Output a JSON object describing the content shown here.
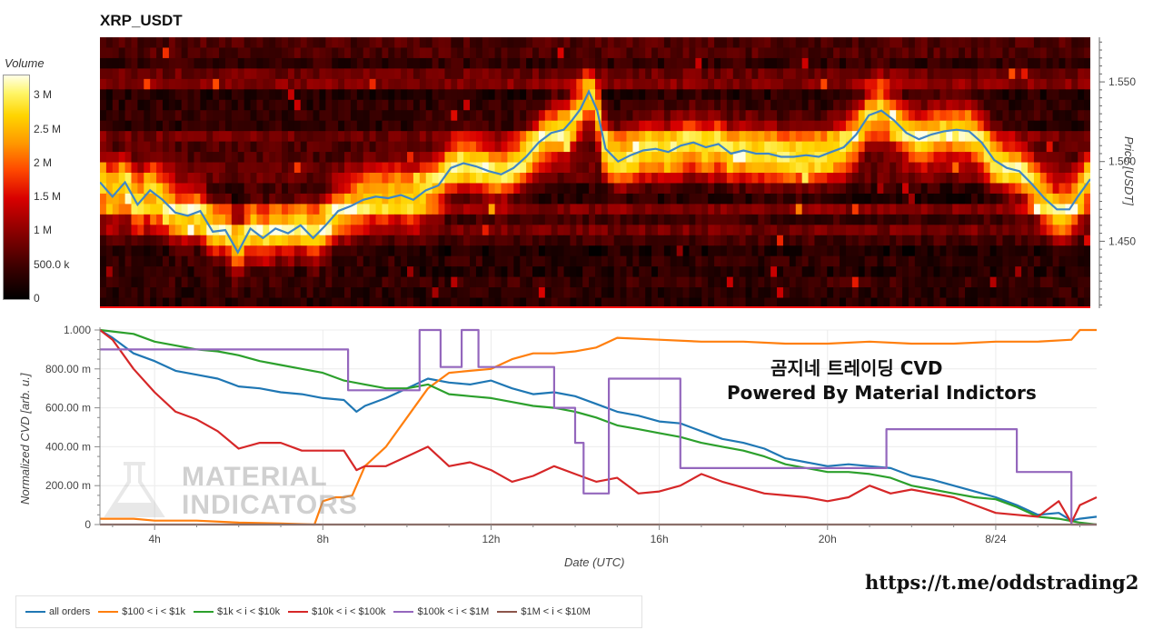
{
  "chart_data": [
    {
      "type": "heatmap",
      "title": "XRP_USDT",
      "colorbar": {
        "label": "Volume",
        "ticks": [
          "0",
          "500.0 k",
          "1 M",
          "1.5 M",
          "2 M",
          "2.5 M",
          "3 M"
        ],
        "tick_values": [
          0,
          500000,
          1000000,
          1500000,
          2000000,
          2500000,
          3000000
        ],
        "range": [
          0,
          3300000
        ]
      },
      "ylabel": "Price [USDT]",
      "ylim": [
        1.408,
        1.578
      ],
      "y_ticks": [
        "1.450",
        "1.500",
        "1.550"
      ],
      "y_tick_values": [
        1.45,
        1.5,
        1.55
      ],
      "x_range_hours": [
        2.7,
        26.4
      ],
      "price_series": {
        "x": [
          2.7,
          3.0,
          3.3,
          3.6,
          3.9,
          4.2,
          4.5,
          4.8,
          5.1,
          5.4,
          5.7,
          6.0,
          6.3,
          6.6,
          6.9,
          7.2,
          7.5,
          7.8,
          8.1,
          8.4,
          8.7,
          9.0,
          9.3,
          9.6,
          9.9,
          10.2,
          10.5,
          10.8,
          11.1,
          11.4,
          11.7,
          12.0,
          12.3,
          12.6,
          12.9,
          13.2,
          13.5,
          13.8,
          14.0,
          14.2,
          14.4,
          14.6,
          14.8,
          15.1,
          15.4,
          15.7,
          16.0,
          16.3,
          16.6,
          16.9,
          17.2,
          17.5,
          17.8,
          18.1,
          18.4,
          18.7,
          19.0,
          19.3,
          19.6,
          19.9,
          20.2,
          20.5,
          20.8,
          21.1,
          21.4,
          21.7,
          22.0,
          22.3,
          22.6,
          22.9,
          23.2,
          23.5,
          23.8,
          24.1,
          24.4,
          24.7,
          25.0,
          25.3,
          25.6,
          25.9,
          26.1,
          26.4
        ],
        "y": [
          1.487,
          1.478,
          1.487,
          1.473,
          1.482,
          1.476,
          1.468,
          1.466,
          1.469,
          1.456,
          1.457,
          1.443,
          1.458,
          1.452,
          1.458,
          1.455,
          1.46,
          1.452,
          1.46,
          1.469,
          1.472,
          1.476,
          1.478,
          1.477,
          1.479,
          1.476,
          1.482,
          1.485,
          1.496,
          1.499,
          1.497,
          1.494,
          1.492,
          1.496,
          1.503,
          1.512,
          1.518,
          1.52,
          1.526,
          1.533,
          1.544,
          1.532,
          1.508,
          1.5,
          1.504,
          1.507,
          1.508,
          1.506,
          1.51,
          1.512,
          1.509,
          1.511,
          1.505,
          1.507,
          1.505,
          1.505,
          1.503,
          1.503,
          1.504,
          1.503,
          1.506,
          1.509,
          1.517,
          1.529,
          1.532,
          1.526,
          1.518,
          1.514,
          1.517,
          1.519,
          1.52,
          1.519,
          1.512,
          1.501,
          1.496,
          1.494,
          1.486,
          1.477,
          1.47,
          1.47,
          1.478,
          1.489
        ]
      }
    },
    {
      "type": "line",
      "xlabel": "Date (UTC)",
      "ylabel": "Normalized CVD [arb. u.]",
      "ylim": [
        0,
        1.0
      ],
      "y_ticks": [
        "0",
        "200.00 m",
        "400.00 m",
        "600.00 m",
        "800.00 m",
        "1.000"
      ],
      "y_tick_values": [
        0,
        0.2,
        0.4,
        0.6,
        0.8,
        1.0
      ],
      "x_range_hours": [
        2.7,
        26.4
      ],
      "x_ticks": [
        "4h",
        "8h",
        "12h",
        "16h",
        "20h",
        "8/24"
      ],
      "x_tick_values": [
        4,
        8,
        12,
        16,
        20,
        24
      ],
      "series": [
        {
          "name": "all orders",
          "color": "#1f77b4",
          "x": [
            2.7,
            3.0,
            3.5,
            4.0,
            4.5,
            5.0,
            5.5,
            6.0,
            6.5,
            7.0,
            7.5,
            8.0,
            8.5,
            8.8,
            9.0,
            9.5,
            10.0,
            10.5,
            11.0,
            11.5,
            12.0,
            12.5,
            13.0,
            13.5,
            14.0,
            14.5,
            15.0,
            15.5,
            16.0,
            16.5,
            17.0,
            17.5,
            18.0,
            18.5,
            19.0,
            19.5,
            20.0,
            20.5,
            21.0,
            21.5,
            22.0,
            22.5,
            23.0,
            23.5,
            24.0,
            24.5,
            25.0,
            25.5,
            25.8,
            26.0,
            26.4
          ],
          "y": [
            1.0,
            0.96,
            0.88,
            0.84,
            0.79,
            0.77,
            0.75,
            0.71,
            0.7,
            0.68,
            0.67,
            0.65,
            0.64,
            0.58,
            0.61,
            0.65,
            0.7,
            0.75,
            0.73,
            0.72,
            0.74,
            0.7,
            0.67,
            0.68,
            0.66,
            0.62,
            0.58,
            0.56,
            0.53,
            0.52,
            0.48,
            0.44,
            0.42,
            0.39,
            0.34,
            0.32,
            0.3,
            0.31,
            0.3,
            0.29,
            0.25,
            0.23,
            0.2,
            0.17,
            0.14,
            0.1,
            0.05,
            0.06,
            0.02,
            0.03,
            0.04
          ]
        },
        {
          "name": "$100 < i < $1k",
          "color": "#ff7f0e",
          "x": [
            2.7,
            3.5,
            4.0,
            5.0,
            6.0,
            7.0,
            7.8,
            8.0,
            8.3,
            8.5,
            8.7,
            9.0,
            9.5,
            10.0,
            10.5,
            11.0,
            11.5,
            12.0,
            12.5,
            13.0,
            13.5,
            14.0,
            14.5,
            15.0,
            16.0,
            17.0,
            18.0,
            19.0,
            20.0,
            21.0,
            22.0,
            23.0,
            24.0,
            25.0,
            25.8,
            26.0,
            26.4
          ],
          "y": [
            0.03,
            0.03,
            0.02,
            0.02,
            0.01,
            0.005,
            0.0,
            0.12,
            0.14,
            0.14,
            0.15,
            0.3,
            0.4,
            0.55,
            0.7,
            0.78,
            0.79,
            0.8,
            0.85,
            0.88,
            0.88,
            0.89,
            0.91,
            0.96,
            0.95,
            0.94,
            0.94,
            0.93,
            0.93,
            0.94,
            0.93,
            0.93,
            0.94,
            0.94,
            0.95,
            1.0,
            1.0
          ]
        },
        {
          "name": "$1k < i < $10k",
          "color": "#2ca02c",
          "x": [
            2.7,
            3.5,
            4.0,
            4.5,
            5.0,
            5.5,
            6.0,
            6.5,
            7.0,
            7.5,
            8.0,
            8.5,
            9.0,
            9.5,
            10.0,
            10.5,
            11.0,
            11.5,
            12.0,
            12.5,
            13.0,
            13.5,
            14.0,
            14.5,
            15.0,
            15.5,
            16.0,
            16.5,
            17.0,
            17.5,
            18.0,
            18.5,
            19.0,
            19.5,
            20.0,
            20.5,
            21.0,
            21.5,
            22.0,
            22.5,
            23.0,
            23.5,
            24.0,
            24.5,
            25.0,
            25.5,
            26.0,
            26.4
          ],
          "y": [
            1.0,
            0.98,
            0.94,
            0.92,
            0.9,
            0.89,
            0.87,
            0.84,
            0.82,
            0.8,
            0.78,
            0.74,
            0.72,
            0.7,
            0.7,
            0.72,
            0.67,
            0.66,
            0.65,
            0.63,
            0.61,
            0.6,
            0.58,
            0.55,
            0.51,
            0.49,
            0.47,
            0.45,
            0.42,
            0.4,
            0.38,
            0.35,
            0.31,
            0.29,
            0.27,
            0.27,
            0.26,
            0.24,
            0.2,
            0.18,
            0.16,
            0.14,
            0.13,
            0.09,
            0.04,
            0.03,
            0.01,
            0.0
          ]
        },
        {
          "name": "$10k < i < $100k",
          "color": "#d62728",
          "x": [
            2.7,
            3.0,
            3.5,
            4.0,
            4.5,
            5.0,
            5.5,
            6.0,
            6.5,
            7.0,
            7.5,
            8.0,
            8.5,
            8.8,
            9.0,
            9.5,
            10.0,
            10.5,
            11.0,
            11.5,
            12.0,
            12.5,
            13.0,
            13.5,
            14.0,
            14.5,
            15.0,
            15.5,
            16.0,
            16.5,
            17.0,
            17.5,
            18.0,
            18.5,
            19.0,
            19.5,
            20.0,
            20.5,
            21.0,
            21.5,
            22.0,
            22.5,
            23.0,
            23.5,
            24.0,
            24.5,
            25.0,
            25.5,
            25.8,
            26.0,
            26.4
          ],
          "y": [
            1.0,
            0.95,
            0.8,
            0.68,
            0.58,
            0.54,
            0.48,
            0.39,
            0.42,
            0.42,
            0.38,
            0.38,
            0.38,
            0.28,
            0.3,
            0.3,
            0.35,
            0.4,
            0.3,
            0.32,
            0.28,
            0.22,
            0.25,
            0.3,
            0.26,
            0.22,
            0.24,
            0.16,
            0.17,
            0.2,
            0.26,
            0.22,
            0.19,
            0.16,
            0.15,
            0.14,
            0.12,
            0.14,
            0.2,
            0.16,
            0.18,
            0.16,
            0.14,
            0.1,
            0.06,
            0.05,
            0.04,
            0.12,
            0.01,
            0.1,
            0.14
          ]
        },
        {
          "name": "$100k < i < $1M",
          "color": "#9467bd",
          "x": [
            2.7,
            8.6,
            8.6,
            10.3,
            10.3,
            10.8,
            10.8,
            11.3,
            11.3,
            11.7,
            11.7,
            13.5,
            13.5,
            14.0,
            14.0,
            14.2,
            14.2,
            14.7,
            14.7,
            14.8,
            14.8,
            16.5,
            16.5,
            21.4,
            21.4,
            24.5,
            24.5,
            25.4,
            25.4,
            25.8,
            25.8,
            26.4
          ],
          "y": [
            0.9,
            0.9,
            0.69,
            0.69,
            1.0,
            1.0,
            0.81,
            0.81,
            1.0,
            1.0,
            0.81,
            0.81,
            0.6,
            0.6,
            0.42,
            0.42,
            0.16,
            0.16,
            0.16,
            0.16,
            0.75,
            0.75,
            0.29,
            0.29,
            0.49,
            0.49,
            0.27,
            0.27,
            0.27,
            0.27,
            0.0,
            0.0
          ]
        },
        {
          "name": "$1M < i < $10M",
          "color": "#8c564b",
          "x": [
            2.7,
            26.4
          ],
          "y": [
            0.0,
            0.0
          ]
        }
      ]
    }
  ],
  "overlay": {
    "line1": "곰지네 트레이딩 CVD",
    "line2": "Powered By Material Indictors",
    "url": "https://t.me/oddstrading2"
  },
  "watermark": {
    "line1": "MATERIAL",
    "line2": "INDICATORS"
  }
}
